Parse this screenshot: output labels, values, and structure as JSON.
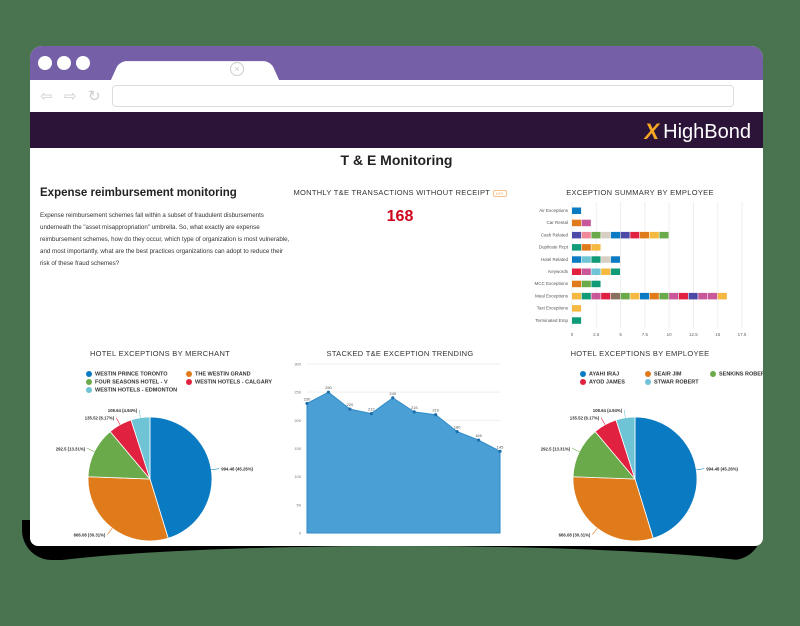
{
  "browser": {
    "tab_close_icon": "close-circle-icon",
    "nav": [
      "back-arrow-icon",
      "forward-arrow-icon",
      "reload-icon"
    ],
    "address_value": ""
  },
  "app": {
    "brand": "HighBond",
    "brand_color": "#f5a623",
    "header_bg": "#2c1338"
  },
  "page": {
    "title": "T & E Monitoring"
  },
  "intro": {
    "heading": "Expense reimbursement  monitoring",
    "body": "Expense reimbursement schemes fall within a subset of fraudulent disbursements underneath the \"asset misappropriation\" umbrella. So, what exactly are expense reimbursement schemes, how do they occur, which type of organization is most vulnerable, and most importantly, what are the best practices organizations can adopt to reduce their risk of these fraud schemes?"
  },
  "kpi": {
    "title": "MONTHLY T&E TRANSACTIONS WITHOUT RECEIPT",
    "badge": "KPI",
    "value": "168",
    "color": "#d0021b"
  },
  "chart_data": [
    {
      "id": "exception_summary",
      "type": "bar",
      "orientation": "horizontal-stacked",
      "title": "EXCEPTION SUMMARY BY EMPLOYEE",
      "categories": [
        "Air Exceptions",
        "Car Rental",
        "Cash Related",
        "Duplicate Rcpt",
        "Hotel Related",
        "Keywords",
        "MCC Exceptions",
        "Meal Exceptions",
        "Taxi Exceptions",
        "Terminated Emp"
      ],
      "values": [
        1,
        2,
        10,
        3,
        5,
        5,
        3,
        16,
        1,
        1
      ],
      "segment_colors": [
        [
          "#0a7bc2"
        ],
        [
          "#e07b1b",
          "#c8589a"
        ],
        [
          "#4b4aa6",
          "#f0899a",
          "#6aaa4a",
          "#d8cfc4",
          "#0a7bc2",
          "#4b4aa6",
          "#e0213f",
          "#e07b1b",
          "#f5b942",
          "#6aaa4a"
        ],
        [
          "#0f9a78",
          "#e07b1b",
          "#f5b942"
        ],
        [
          "#0a7bc2",
          "#6ec4d4",
          "#0f9a78",
          "#d8cfc4",
          "#0a7bc2"
        ],
        [
          "#e0213f",
          "#c8589a",
          "#6ec4d4",
          "#f5b942",
          "#0f9a78"
        ],
        [
          "#e07b1b",
          "#6aaa4a",
          "#0f9a78"
        ],
        [
          "#f5b942",
          "#0f9a78",
          "#c8589a",
          "#e0213f",
          "#8a6f5e",
          "#6aaa4a",
          "#f5b942",
          "#0a7bc2",
          "#e07b1b",
          "#6aaa4a",
          "#c8589a",
          "#e0213f",
          "#4b4aa6",
          "#c8589a",
          "#c8589a",
          "#f5b942"
        ],
        [
          "#f5b942"
        ],
        [
          "#0f9a78"
        ]
      ],
      "xticks": [
        "0",
        "2.5",
        "5",
        "7.5",
        "10",
        "12.5",
        "15",
        "17.5"
      ],
      "xlim": [
        0,
        17.5
      ],
      "grid": true
    },
    {
      "id": "hotel_by_merchant",
      "type": "pie",
      "title": "HOTEL EXCEPTIONS BY MERCHANT",
      "legend": [
        "WESTIN PRINCE TORONTO",
        "THE WESTIN GRAND",
        "FOUR SEASONS HOTEL - V",
        "WESTIN HOTELS - CALGARY",
        "WESTIN HOTELS - EDMONTON"
      ],
      "slices": [
        {
          "label": "WESTIN PRINCE TORONTO",
          "value": 994.48,
          "pct": "45.26%",
          "text": "994.48 (45.26%)",
          "color": "#0a7bc2"
        },
        {
          "label": "THE WESTIN GRAND",
          "value": 666.08,
          "pct": "30.31%",
          "text": "666.08 (30.31%)",
          "color": "#e07b1b"
        },
        {
          "label": "FOUR SEASONS HOTEL - V",
          "value": 292.5,
          "pct": "13.31%",
          "text": "292.5 (13.31%)",
          "color": "#6aaa4a"
        },
        {
          "label": "WESTIN HOTELS - CALGARY",
          "value": 135.52,
          "pct": "6.17%",
          "text": "135.52 (6.17%)",
          "color": "#e0213f"
        },
        {
          "label": "WESTIN HOTELS - EDMONTON",
          "value": 108.64,
          "pct": "4.94%",
          "text": "108.64 (4.94%)",
          "color": "#6ec4d4"
        }
      ]
    },
    {
      "id": "trending",
      "type": "area",
      "title": "STACKED T&E EXCEPTION TRENDING",
      "x": [
        0,
        1,
        2,
        3,
        4,
        5,
        6,
        7,
        8,
        9
      ],
      "values": [
        230,
        250,
        220,
        212,
        240,
        215,
        210,
        180,
        165,
        145
      ],
      "point_labels": [
        "230",
        "250",
        "220",
        "212",
        "240",
        "215",
        "210",
        "180",
        "165",
        "145"
      ],
      "yticks": [
        "0",
        "50",
        "100",
        "150",
        "200",
        "250",
        "300"
      ],
      "ylim": [
        0,
        300
      ],
      "color": "#4a9fd4",
      "grid": true
    },
    {
      "id": "hotel_by_employee",
      "type": "pie",
      "title": "HOTEL EXCEPTIONS BY EMPLOYEE",
      "legend": [
        "AYAHI IRAJ",
        "SEAIR JIM",
        "SENKINS ROBERT",
        "AYOD JAMES",
        "STWAR ROBERT"
      ],
      "slices": [
        {
          "label": "AYAHI IRAJ",
          "value": 994.48,
          "pct": "45.26%",
          "text": "994.48 (45.26%)",
          "color": "#0a7bc2"
        },
        {
          "label": "SEAIR JIM",
          "value": 666.08,
          "pct": "30.31%",
          "text": "666.08 (30.31%)",
          "color": "#e07b1b"
        },
        {
          "label": "SENKINS ROBERT",
          "value": 292.5,
          "pct": "13.31%",
          "text": "292.5 (13.31%)",
          "color": "#6aaa4a"
        },
        {
          "label": "AYOD JAMES",
          "value": 135.52,
          "pct": "6.17%",
          "text": "135.52 (6.17%)",
          "color": "#e0213f"
        },
        {
          "label": "STWAR ROBERT",
          "value": 108.64,
          "pct": "4.94%",
          "text": "108.64 (4.94%)",
          "color": "#6ec4d4"
        }
      ]
    }
  ]
}
